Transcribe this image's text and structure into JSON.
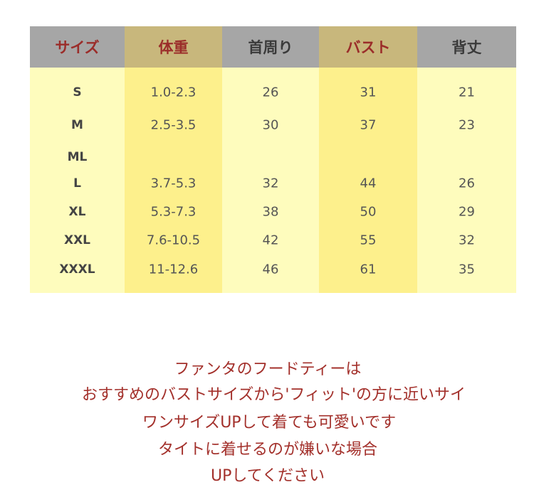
{
  "table": {
    "headers": [
      "サイズ",
      "体重",
      "首周り",
      "バスト",
      "背丈"
    ],
    "rows": [
      [
        "S",
        "1.0-2.3",
        "26",
        "31",
        "21"
      ],
      [
        "M",
        "2.5-3.5",
        "30",
        "37",
        "23"
      ],
      [
        "ML"
      ],
      [
        "L",
        "3.7-5.3",
        "32",
        "44",
        "26"
      ],
      [
        "XL",
        "5.3-7.3",
        "38",
        "50",
        "29"
      ],
      [
        "XXL",
        "7.6-10.5",
        "42",
        "55",
        "32"
      ],
      [
        "XXXL",
        "11-12.6",
        "46",
        "61",
        "35"
      ]
    ]
  },
  "notes": [
    "ファンタのフードティーは",
    "おすすめのバストサイズから'フィット'の方に近いサイ",
    "ワンサイズUPして着ても可愛いです",
    "タイトに着せるのが嫌いな場合",
    "UPしてください"
  ]
}
